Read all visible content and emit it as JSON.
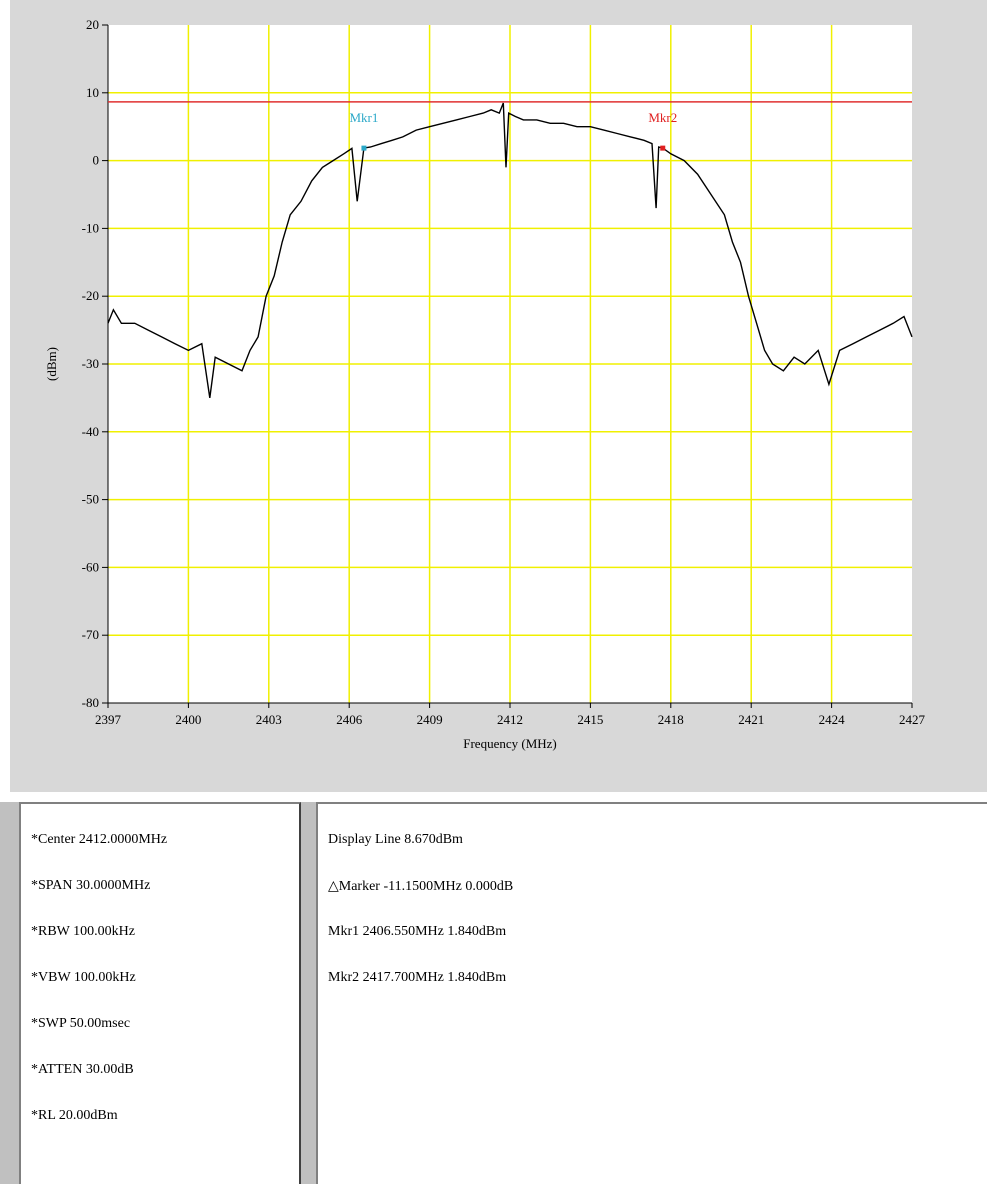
{
  "chart_data": {
    "type": "line",
    "xlabel": "Frequency (MHz)",
    "ylabel": "(dBm)",
    "xlim": [
      2397,
      2427
    ],
    "ylim": [
      -80,
      20
    ],
    "xticks": [
      2397,
      2400,
      2403,
      2406,
      2409,
      2412,
      2415,
      2418,
      2421,
      2424,
      2427
    ],
    "yticks": [
      20,
      10,
      0,
      -10,
      -20,
      -30,
      -40,
      -50,
      -60,
      -70,
      -80
    ],
    "grid": true,
    "display_line_dbm": 8.67,
    "series": [
      {
        "x": [
          2397,
          2397.2,
          2397.5,
          2398,
          2398.5,
          2399,
          2399.5,
          2400,
          2400.5,
          2400.8,
          2401,
          2401.5,
          2402,
          2402.3,
          2402.6,
          2402.9,
          2403.2,
          2403.5,
          2403.8,
          2404.2,
          2404.6,
          2405,
          2405.4,
          2405.8,
          2406.1,
          2406.3,
          2406.55,
          2406.8,
          2407.2,
          2407.6,
          2408,
          2408.5,
          2409,
          2409.5,
          2410,
          2410.5,
          2411,
          2411.3,
          2411.6,
          2411.75,
          2411.85,
          2411.95,
          2412.2,
          2412.5,
          2413,
          2413.5,
          2414,
          2414.5,
          2415,
          2415.5,
          2416,
          2416.5,
          2417,
          2417.3,
          2417.45,
          2417.55,
          2417.7,
          2418,
          2418.5,
          2419,
          2419.5,
          2420,
          2420.3,
          2420.6,
          2420.9,
          2421.2,
          2421.5,
          2421.8,
          2422.2,
          2422.6,
          2423,
          2423.5,
          2423.9,
          2424.3,
          2424.8,
          2425.3,
          2425.8,
          2426.3,
          2426.7,
          2427
        ],
        "y": [
          -24,
          -22,
          -24,
          -24,
          -25,
          -26,
          -27,
          -28,
          -27,
          -35,
          -29,
          -30,
          -31,
          -28,
          -26,
          -20,
          -17,
          -12,
          -8,
          -6,
          -3,
          -1,
          0,
          1,
          1.8,
          -6,
          1.84,
          2,
          2.5,
          3,
          3.5,
          4.5,
          5,
          5.5,
          6,
          6.5,
          7,
          7.5,
          7,
          8.5,
          -1,
          7,
          6.5,
          6,
          6,
          5.5,
          5.5,
          5,
          5,
          4.5,
          4,
          3.5,
          3,
          2.5,
          -7,
          2,
          1.84,
          1,
          0,
          -2,
          -5,
          -8,
          -12,
          -15,
          -20,
          -24,
          -28,
          -30,
          -31,
          -29,
          -30,
          -28,
          -33,
          -28,
          -27,
          -26,
          -25,
          -24,
          -23,
          -26
        ]
      }
    ],
    "markers": [
      {
        "label": "Mkr1",
        "x": 2406.55,
        "y": 1.84,
        "color": "#2aa8c8"
      },
      {
        "label": "Mkr2",
        "x": 2417.7,
        "y": 1.84,
        "color": "#e02020"
      }
    ]
  },
  "settings": [
    "*Center 2412.0000MHz",
    "*SPAN 30.0000MHz",
    "*RBW 100.00kHz",
    "*VBW 100.00kHz",
    "*SWP 50.00msec",
    "*ATTEN 30.00dB",
    "*RL 20.00dBm"
  ],
  "readouts": [
    "Display Line 8.670dBm",
    "△Marker -11.1500MHz 0.000dB",
    "Mkr1 2406.550MHz 1.840dBm",
    "Mkr2 2417.700MHz 1.840dBm"
  ],
  "colors": {
    "grid": "#f0f000",
    "display_line": "#e03030",
    "trace": "#000000",
    "plot_bg": "#ffffff",
    "panel_bg": "#d8d8d8"
  }
}
